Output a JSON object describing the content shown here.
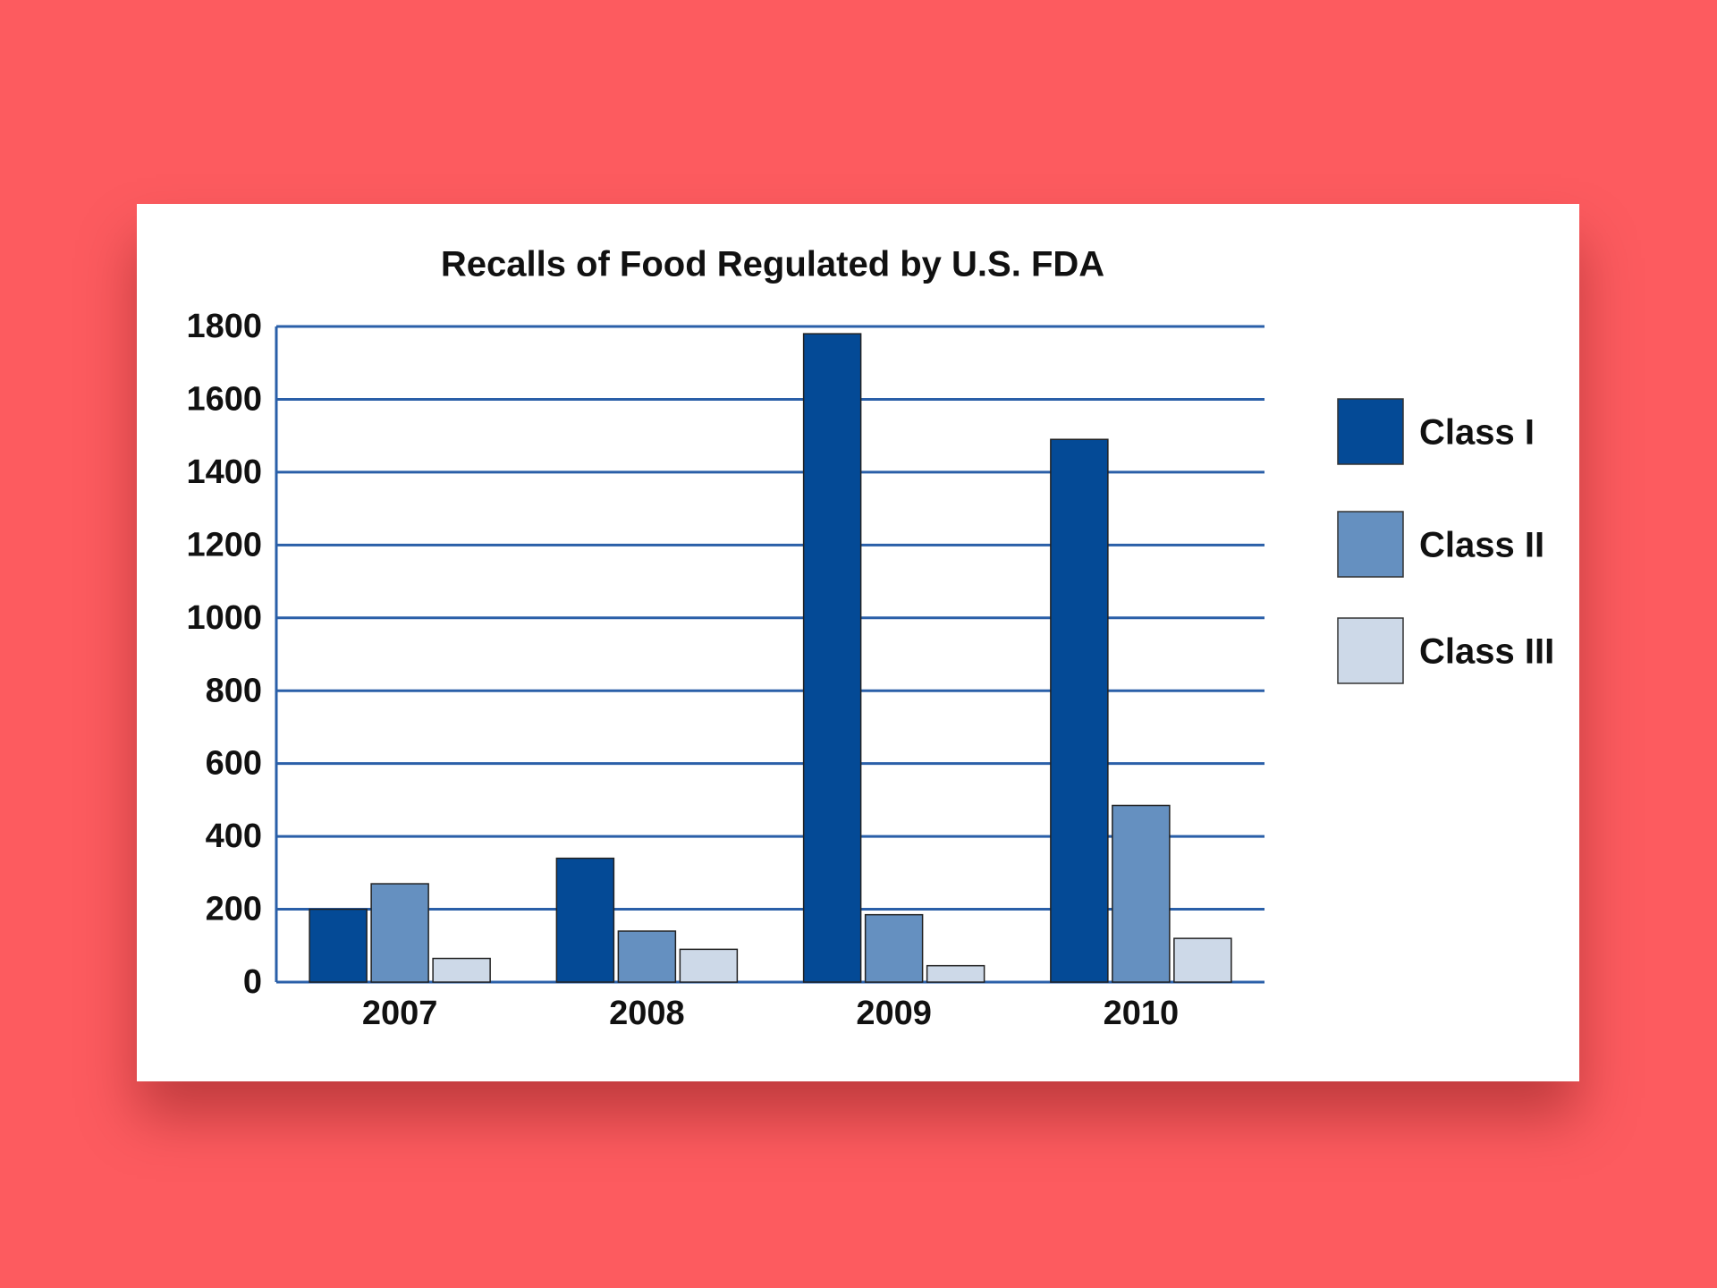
{
  "chart_data": {
    "type": "bar",
    "title": "Recalls of Food Regulated by U.S. FDA",
    "categories": [
      "2007",
      "2008",
      "2009",
      "2010"
    ],
    "series": [
      {
        "name": "Class I",
        "color": "#044a96",
        "values": [
          200,
          340,
          1780,
          1490
        ]
      },
      {
        "name": "Class II",
        "color": "#6590c0",
        "values": [
          270,
          140,
          185,
          485
        ]
      },
      {
        "name": "Class III",
        "color": "#cdd9e8",
        "values": [
          65,
          90,
          45,
          120
        ]
      }
    ],
    "ylim": [
      0,
      1800
    ],
    "yticks": [
      0,
      200,
      400,
      600,
      800,
      1000,
      1200,
      1400,
      1600,
      1800
    ],
    "grid": true,
    "legend": "right"
  }
}
